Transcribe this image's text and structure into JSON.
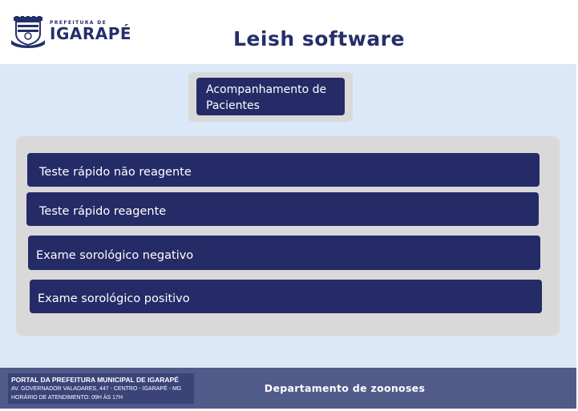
{
  "header": {
    "logo_small_text": "PREFEITURA DE",
    "logo_name": "IGARAPÉ",
    "title": "Leish software"
  },
  "main": {
    "top_button": "Acompanhamento de Pacientes",
    "options": [
      {
        "label": "Teste rápido não reagente"
      },
      {
        "label": "Teste rápido reagente"
      },
      {
        "label": "Exame sorológico negativo"
      },
      {
        "label": "Exame sorológico positivo"
      }
    ]
  },
  "footer": {
    "portal_title": "PORTAL DA PREFEITURA MUNICIPAL DE IGARAPÉ",
    "address": "AV. GOVERNADOR VALADARES, 447 - CENTRO - IGARAPÉ - MG",
    "hours": "HORÁRIO DE ATENDIMENTO: 09H ÀS 17H",
    "department": "Departamento de zoonoses"
  },
  "colors": {
    "brand_navy": "#252b67",
    "background": "#dbe8f7",
    "panel": "#d9d9d9",
    "footer": "#515b8a"
  }
}
